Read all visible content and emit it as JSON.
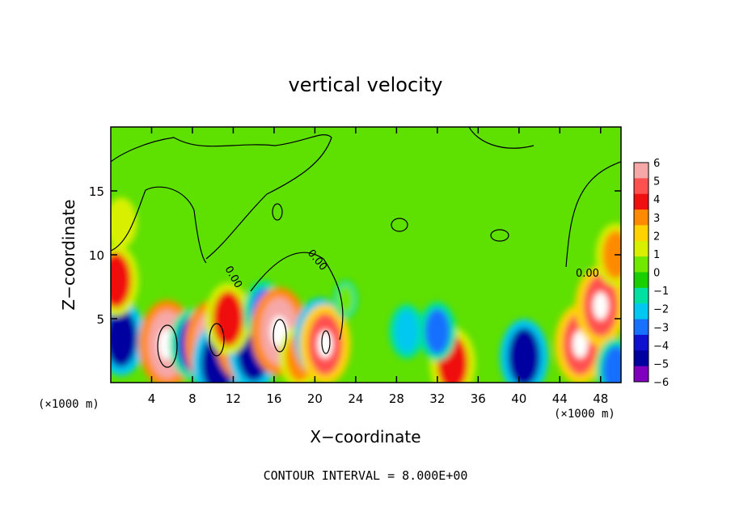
{
  "chart_data": {
    "type": "heatmap",
    "title": "vertical velocity",
    "xlabel": "X−coordinate",
    "ylabel": "Z−coordinate",
    "x_unit_label": "(×1000 m)",
    "xlim": [
      0,
      50
    ],
    "ylim": [
      0,
      20
    ],
    "x_ticks": [
      4,
      8,
      12,
      16,
      20,
      24,
      28,
      32,
      36,
      40,
      44,
      48
    ],
    "y_ticks": [
      5,
      10,
      15
    ],
    "colorbar": {
      "ticks": [
        6,
        5,
        4,
        3,
        2,
        1,
        0,
        -1,
        -2,
        -3,
        -4,
        -5,
        -6
      ],
      "tick_labels": [
        "6",
        "5",
        "4",
        "3",
        "2",
        "1",
        "0",
        "−1",
        "−2",
        "−3",
        "−4",
        "−5",
        "−6"
      ],
      "colors": [
        "#f6a8a8",
        "#ff5050",
        "#f01010",
        "#ff8a00",
        "#ffd200",
        "#d8f000",
        "#70e800",
        "#18d000",
        "#00e0a0",
        "#00c8f0",
        "#1870ff",
        "#1010d0",
        "#0000a0",
        "#8000c0"
      ]
    },
    "contour_labels": [
      "0.00",
      "0.00",
      "0.00"
    ],
    "footer": "CONTOUR INTERVAL = 8.000E+00",
    "features": [
      {
        "x": 1.0,
        "z": 3.5,
        "w": -4.5
      },
      {
        "x": 0.5,
        "z": 8.0,
        "w": 4.0
      },
      {
        "x": 5.5,
        "z": 3.0,
        "w": 6.0
      },
      {
        "x": 8.0,
        "z": 3.0,
        "w": -4.0
      },
      {
        "x": 10.0,
        "z": 3.0,
        "w": 6.0
      },
      {
        "x": 10.5,
        "z": 1.5,
        "w": -5.0
      },
      {
        "x": 13.0,
        "z": 3.5,
        "w": 6.0
      },
      {
        "x": 14.0,
        "z": 2.5,
        "w": -5.0
      },
      {
        "x": 11.5,
        "z": 5.0,
        "w": 4.0
      },
      {
        "x": 15.0,
        "z": 5.5,
        "w": -3.0
      },
      {
        "x": 16.5,
        "z": 4.0,
        "w": 6.0
      },
      {
        "x": 18.5,
        "z": 2.0,
        "w": 3.0
      },
      {
        "x": 20.5,
        "z": 3.5,
        "w": -5.0
      },
      {
        "x": 21.0,
        "z": 3.0,
        "w": 5.0
      },
      {
        "x": 23.0,
        "z": 6.5,
        "w": 0.0
      },
      {
        "x": 29.0,
        "z": 4.0,
        "w": -2.0
      },
      {
        "x": 33.5,
        "z": 1.5,
        "w": 4.0
      },
      {
        "x": 32.0,
        "z": 4.0,
        "w": -2.5
      },
      {
        "x": 40.5,
        "z": 2.0,
        "w": -4.5
      },
      {
        "x": 46.0,
        "z": 3.0,
        "w": 5.0
      },
      {
        "x": 48.0,
        "z": 6.0,
        "w": 5.0
      },
      {
        "x": 49.5,
        "z": 1.0,
        "w": -3.0
      },
      {
        "x": 1.0,
        "z": 12.5,
        "w": 1.5
      },
      {
        "x": 49.5,
        "z": 10.0,
        "w": 3.0
      }
    ]
  }
}
